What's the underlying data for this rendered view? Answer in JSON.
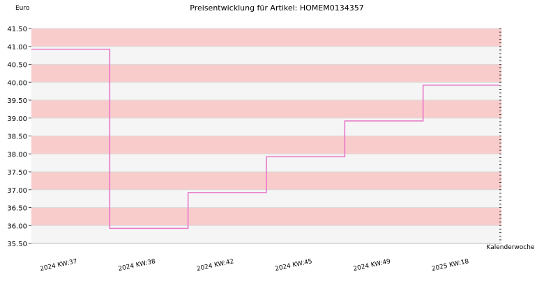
{
  "chart_data": {
    "type": "line",
    "title": "Preisentwicklung für Artikel: HOMEM0134357",
    "ylabel": "Euro",
    "xlabel": "Kalenderwoche",
    "categories": [
      "2024 KW:37",
      "2024 KW:38",
      "2024 KW:42",
      "2024 KW:45",
      "2024 KW:49",
      "2025 KW:18"
    ],
    "step": true,
    "series": [
      {
        "values": [
          40.92,
          35.92,
          36.92,
          37.92,
          38.92,
          39.92
        ]
      }
    ],
    "ylim": [
      35.5,
      41.5
    ],
    "yticks": [
      "35.50",
      "36.00",
      "36.50",
      "37.00",
      "37.50",
      "38.00",
      "38.50",
      "39.00",
      "39.50",
      "40.00",
      "40.50",
      "41.00",
      "41.50"
    ],
    "grid": true,
    "line_color": "#e879c9",
    "band_colors": [
      "#f9cccc",
      "#f5f5f5"
    ]
  }
}
